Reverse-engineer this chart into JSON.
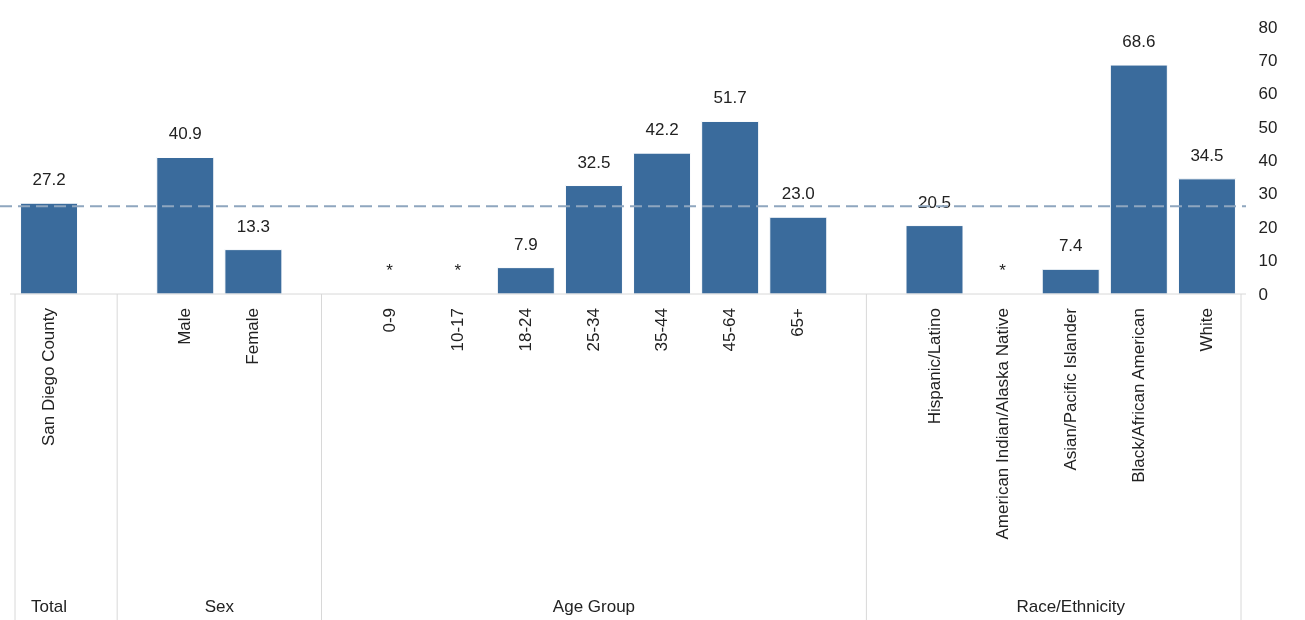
{
  "chart_data": {
    "type": "bar",
    "categories": [
      "San Diego County",
      null,
      "Male",
      "Female",
      null,
      "0-9",
      "10-17",
      "18-24",
      "25-34",
      "35-44",
      "45-64",
      "65+",
      null,
      "Hispanic/Latino",
      "American Indian/Alaska Native",
      "Asian/Pacific Islander",
      "Black/African American",
      "White"
    ],
    "values": [
      27.2,
      null,
      40.9,
      13.3,
      null,
      null,
      null,
      7.9,
      32.5,
      42.2,
      51.7,
      23.0,
      null,
      20.5,
      null,
      7.4,
      68.6,
      34.5
    ],
    "value_labels": [
      "27.2",
      null,
      "40.9",
      "13.3",
      null,
      "*",
      "*",
      "7.9",
      "32.5",
      "42.2",
      "51.7",
      "23.0",
      null,
      "20.5",
      "*",
      "7.4",
      "68.6",
      "34.5"
    ],
    "color": "#3a6b9c",
    "ylim": [
      0,
      80
    ],
    "yticks": [
      0,
      10,
      20,
      30,
      40,
      50,
      60,
      70,
      80
    ],
    "ref_lines": [
      {
        "axis": "y",
        "value": 26.3,
        "color": "#8fa6bf",
        "line_style": "dashed"
      }
    ],
    "annotations": [
      "Total",
      "Sex",
      "Age Group",
      "Race/Ethnicity"
    ],
    "grid": false
  }
}
